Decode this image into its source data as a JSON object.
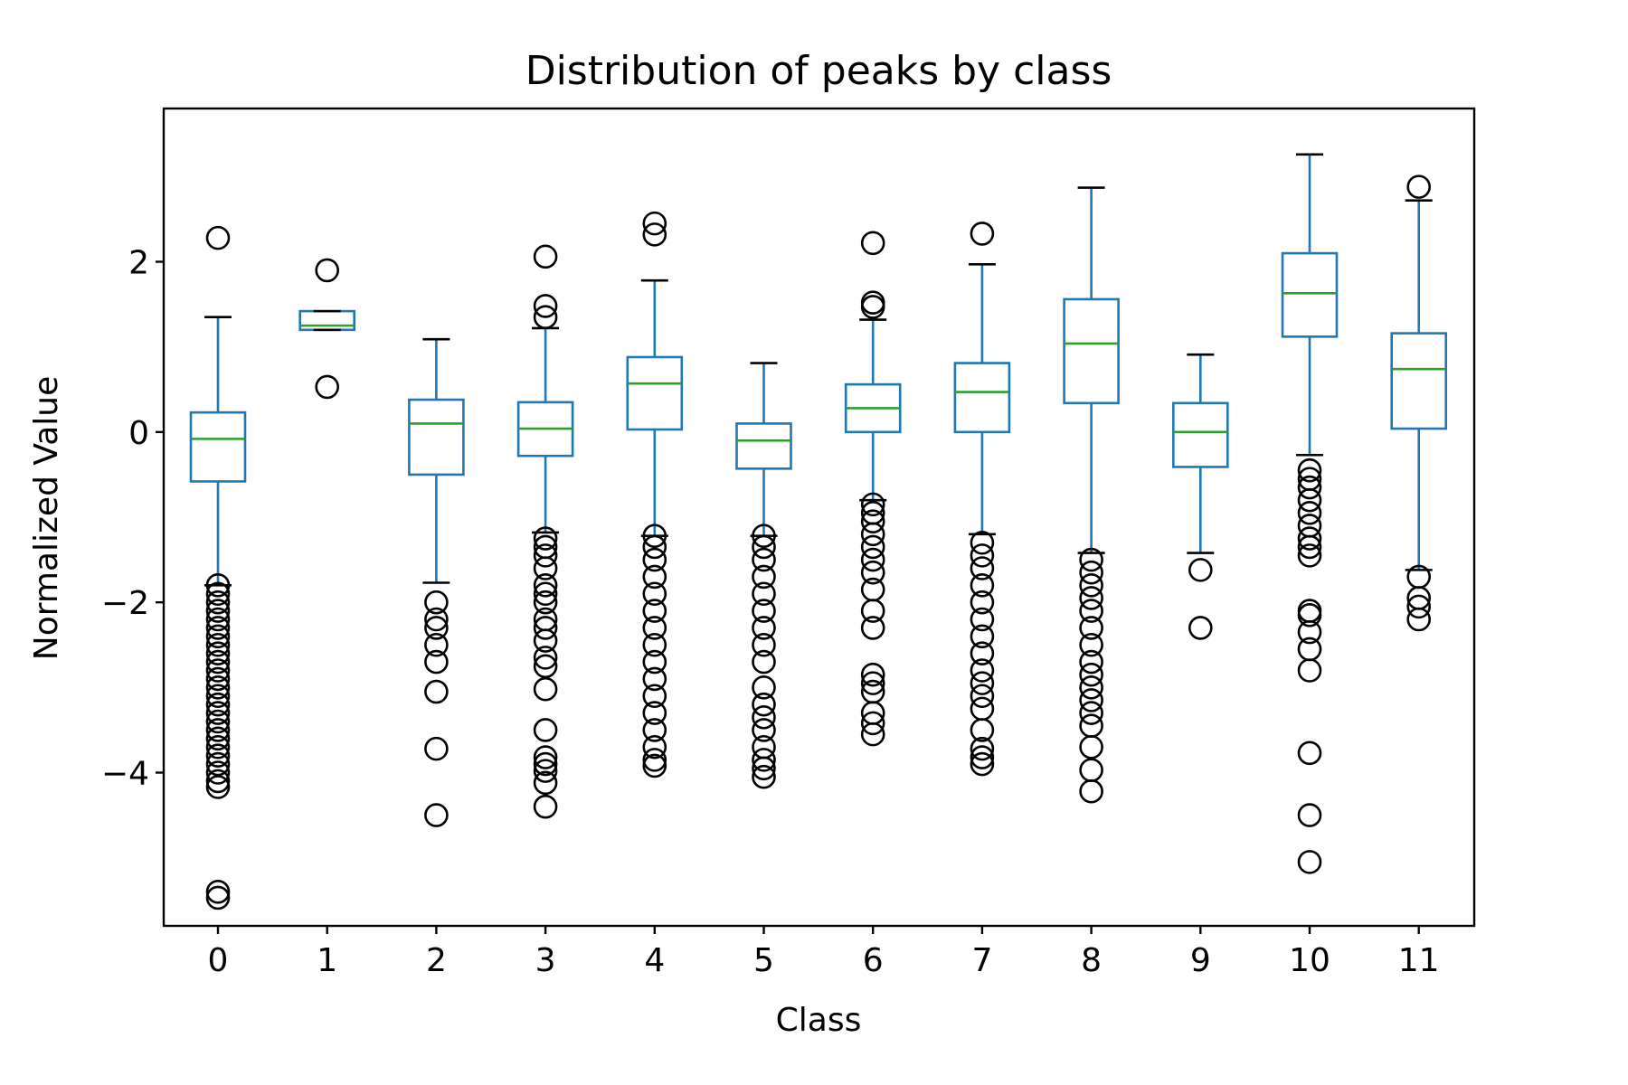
{
  "chart_data": {
    "type": "box",
    "title": "Distribution of peaks by class",
    "xlabel": "Class",
    "ylabel": "Normalized Value",
    "ylim": [
      -5.8,
      3.8
    ],
    "yticks": [
      2,
      0,
      -2,
      -4
    ],
    "ytick_labels": [
      "2",
      "0",
      "−2",
      "−4"
    ],
    "grid": false,
    "categories": [
      "0",
      "1",
      "2",
      "3",
      "4",
      "5",
      "6",
      "7",
      "8",
      "9",
      "10",
      "11"
    ],
    "boxes": [
      {
        "whisker_low": -1.8,
        "q1": -0.58,
        "median": -0.08,
        "q3": 0.23,
        "whisker_high": 1.35,
        "fliers": [
          2.28,
          -1.8,
          -1.9,
          -2.0,
          -2.1,
          -2.2,
          -2.3,
          -2.4,
          -2.5,
          -2.6,
          -2.7,
          -2.8,
          -2.9,
          -3.0,
          -3.1,
          -3.2,
          -3.3,
          -3.4,
          -3.5,
          -3.6,
          -3.7,
          -3.8,
          -3.9,
          -4.0,
          -4.1,
          -4.17,
          -5.4,
          -5.47
        ]
      },
      {
        "whisker_low": 1.2,
        "q1": 1.2,
        "median": 1.25,
        "q3": 1.42,
        "whisker_high": 1.42,
        "fliers": [
          1.9,
          0.53
        ]
      },
      {
        "whisker_low": -1.77,
        "q1": -0.5,
        "median": 0.1,
        "q3": 0.38,
        "whisker_high": 1.09,
        "fliers": [
          -2.0,
          -2.2,
          -2.3,
          -2.5,
          -2.7,
          -3.05,
          -3.72,
          -4.5
        ]
      },
      {
        "whisker_low": -1.18,
        "q1": -0.28,
        "median": 0.04,
        "q3": 0.35,
        "whisker_high": 1.22,
        "fliers": [
          2.06,
          1.48,
          1.35,
          -1.25,
          -1.35,
          -1.45,
          -1.6,
          -1.8,
          -1.9,
          -2.0,
          -2.2,
          -2.3,
          -2.45,
          -2.65,
          -2.75,
          -3.02,
          -3.5,
          -3.82,
          -3.9,
          -3.98,
          -4.12,
          -4.4
        ]
      },
      {
        "whisker_low": -1.22,
        "q1": 0.03,
        "median": 0.57,
        "q3": 0.88,
        "whisker_high": 1.78,
        "fliers": [
          2.45,
          2.32,
          -1.22,
          -1.35,
          -1.5,
          -1.7,
          -1.9,
          -2.1,
          -2.3,
          -2.5,
          -2.7,
          -2.9,
          -3.1,
          -3.3,
          -3.5,
          -3.7,
          -3.85,
          -3.92
        ]
      },
      {
        "whisker_low": -1.22,
        "q1": -0.43,
        "median": -0.1,
        "q3": 0.1,
        "whisker_high": 0.81,
        "fliers": [
          -1.22,
          -1.35,
          -1.5,
          -1.7,
          -1.9,
          -2.1,
          -2.3,
          -2.5,
          -2.7,
          -3.0,
          -3.2,
          -3.35,
          -3.5,
          -3.7,
          -3.85,
          -3.95,
          -4.05
        ]
      },
      {
        "whisker_low": -0.8,
        "q1": 0.0,
        "median": 0.28,
        "q3": 0.56,
        "whisker_high": 1.32,
        "fliers": [
          2.22,
          1.52,
          1.47,
          -0.85,
          -0.95,
          -1.05,
          -1.2,
          -1.35,
          -1.5,
          -1.65,
          -1.85,
          -2.1,
          -2.3,
          -2.85,
          -2.95,
          -3.05,
          -3.3,
          -3.42,
          -3.55
        ]
      },
      {
        "whisker_low": -1.2,
        "q1": 0.0,
        "median": 0.47,
        "q3": 0.81,
        "whisker_high": 1.97,
        "fliers": [
          2.33,
          -1.3,
          -1.45,
          -1.6,
          -1.8,
          -2.0,
          -2.2,
          -2.4,
          -2.6,
          -2.8,
          -2.95,
          -3.1,
          -3.25,
          -3.5,
          -3.72,
          -3.82,
          -3.9
        ]
      },
      {
        "whisker_low": -1.42,
        "q1": 0.34,
        "median": 1.04,
        "q3": 1.56,
        "whisker_high": 2.87,
        "fliers": [
          -1.5,
          -1.65,
          -1.8,
          -1.95,
          -2.1,
          -2.3,
          -2.5,
          -2.7,
          -2.85,
          -3.0,
          -3.15,
          -3.3,
          -3.45,
          -3.7,
          -3.97,
          -4.22
        ]
      },
      {
        "whisker_low": -1.42,
        "q1": -0.41,
        "median": 0.0,
        "q3": 0.34,
        "whisker_high": 0.91,
        "fliers": [
          -1.62,
          -2.3
        ]
      },
      {
        "whisker_low": -0.27,
        "q1": 1.12,
        "median": 1.63,
        "q3": 2.1,
        "whisker_high": 3.26,
        "fliers": [
          -0.45,
          -0.55,
          -0.65,
          -0.8,
          -0.95,
          -1.1,
          -1.25,
          -1.35,
          -1.45,
          -2.1,
          -2.15,
          -2.35,
          -2.55,
          -2.8,
          -3.77,
          -4.5,
          -5.05
        ]
      },
      {
        "whisker_low": -1.62,
        "q1": 0.04,
        "median": 0.74,
        "q3": 1.16,
        "whisker_high": 2.72,
        "fliers": [
          2.88,
          -1.7,
          -1.95,
          -2.05,
          -2.2
        ]
      }
    ]
  }
}
